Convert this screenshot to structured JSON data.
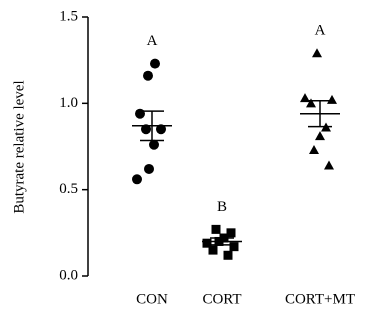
{
  "chart_data": {
    "type": "dot_plot",
    "ylabel": "Butyrate relative level",
    "categories": [
      "CON",
      "CORT",
      "CORT+MT"
    ],
    "markers": [
      "circle",
      "square",
      "triangle"
    ],
    "color": "#000000",
    "values": [
      [
        1.23,
        1.16,
        0.94,
        0.85,
        0.85,
        0.76,
        0.62,
        0.56
      ],
      [
        0.27,
        0.25,
        0.22,
        0.2,
        0.19,
        0.17,
        0.15,
        0.12
      ],
      [
        1.29,
        1.03,
        1.02,
        1.0,
        0.86,
        0.81,
        0.73,
        0.64
      ]
    ],
    "means": [
      0.87,
      0.2,
      0.94
    ],
    "sems": [
      0.085,
      0.02,
      0.075
    ],
    "annotations": [
      "A",
      "B",
      "A"
    ],
    "ylim": [
      0,
      1.5
    ],
    "yticks": [
      {
        "value": 0,
        "label": "0.0"
      },
      {
        "value": 0.5,
        "label": "0.5"
      },
      {
        "value": 1,
        "label": "1.0"
      },
      {
        "value": 1.5,
        "label": "1.5"
      }
    ]
  }
}
